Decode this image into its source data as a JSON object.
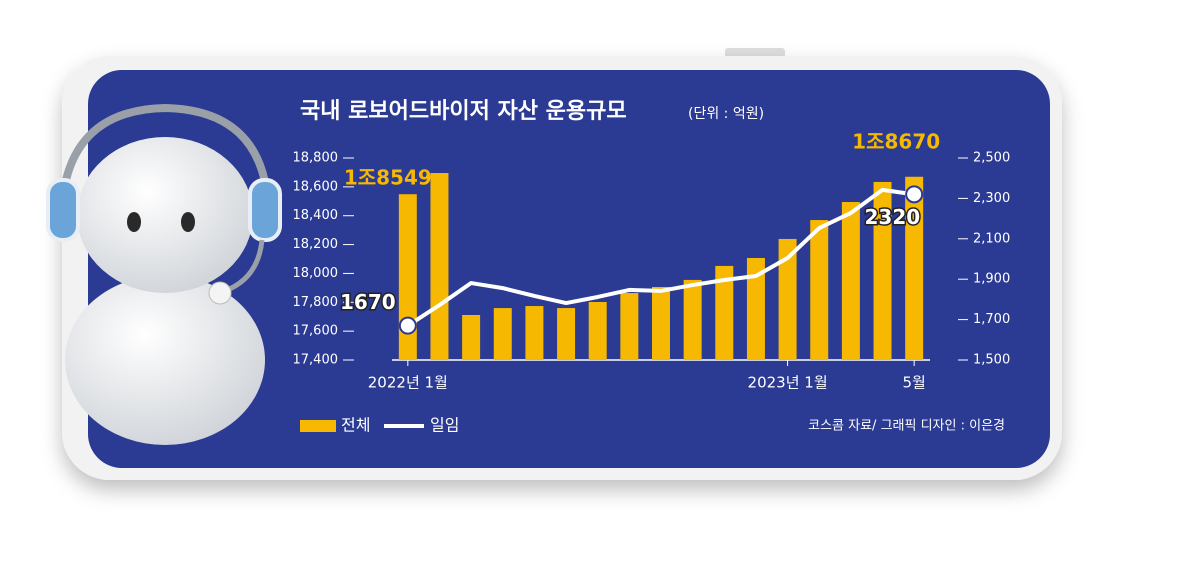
{
  "chart_data": {
    "type": "bar",
    "title": "국내 로보어드바이저 자산 운용규모",
    "subtitle": "(단위 : 억원)",
    "source": "코스콤 자료/ 그래픽 디자인 : 이은경",
    "categories": [
      "2022년 1월",
      null,
      null,
      null,
      null,
      null,
      null,
      null,
      null,
      null,
      null,
      null,
      "2023년 1월",
      null,
      null,
      null,
      "5월"
    ],
    "series": [
      {
        "name": "전체",
        "type": "bar",
        "color": "#f6b800",
        "values": [
          18549,
          18696,
          17712,
          17760,
          17774,
          17760,
          17802,
          17864,
          17906,
          17955,
          18052,
          18107,
          18239,
          18370,
          18495,
          18634,
          18670
        ],
        "value_labels": [
          "1조8549",
          null,
          null,
          null,
          null,
          null,
          null,
          null,
          null,
          null,
          null,
          null,
          null,
          null,
          null,
          null,
          "1조8670"
        ]
      },
      {
        "name": "일임",
        "type": "line",
        "axis": "y2",
        "color": "#ffffff",
        "values": [
          1670,
          1772,
          1881,
          1856,
          1817,
          1782,
          1812,
          1847,
          1842,
          1871,
          1896,
          1916,
          2005,
          2153,
          2228,
          2342,
          2320
        ]
      }
    ],
    "ylim": [
      17400,
      18800
    ],
    "yticks": [
      {
        "value": 17400,
        "label": "17,400"
      },
      {
        "value": 17600,
        "label": "17,600"
      },
      {
        "value": 17800,
        "label": "17,800"
      },
      {
        "value": 18000,
        "label": "18,000"
      },
      {
        "value": 18200,
        "label": "18,200"
      },
      {
        "value": 18400,
        "label": "18,400"
      },
      {
        "value": 18600,
        "label": "18,600"
      },
      {
        "value": 18800,
        "label": "18,800"
      }
    ],
    "y2lim": [
      1500,
      2500
    ],
    "y2ticks": [
      {
        "value": 1500,
        "label": "1,500"
      },
      {
        "value": 1700,
        "label": "1,700"
      },
      {
        "value": 1900,
        "label": "1,900"
      },
      {
        "value": 2100,
        "label": "2,100"
      },
      {
        "value": 2300,
        "label": "2,300"
      },
      {
        "value": 2500,
        "label": "2,500"
      }
    ]
  }
}
